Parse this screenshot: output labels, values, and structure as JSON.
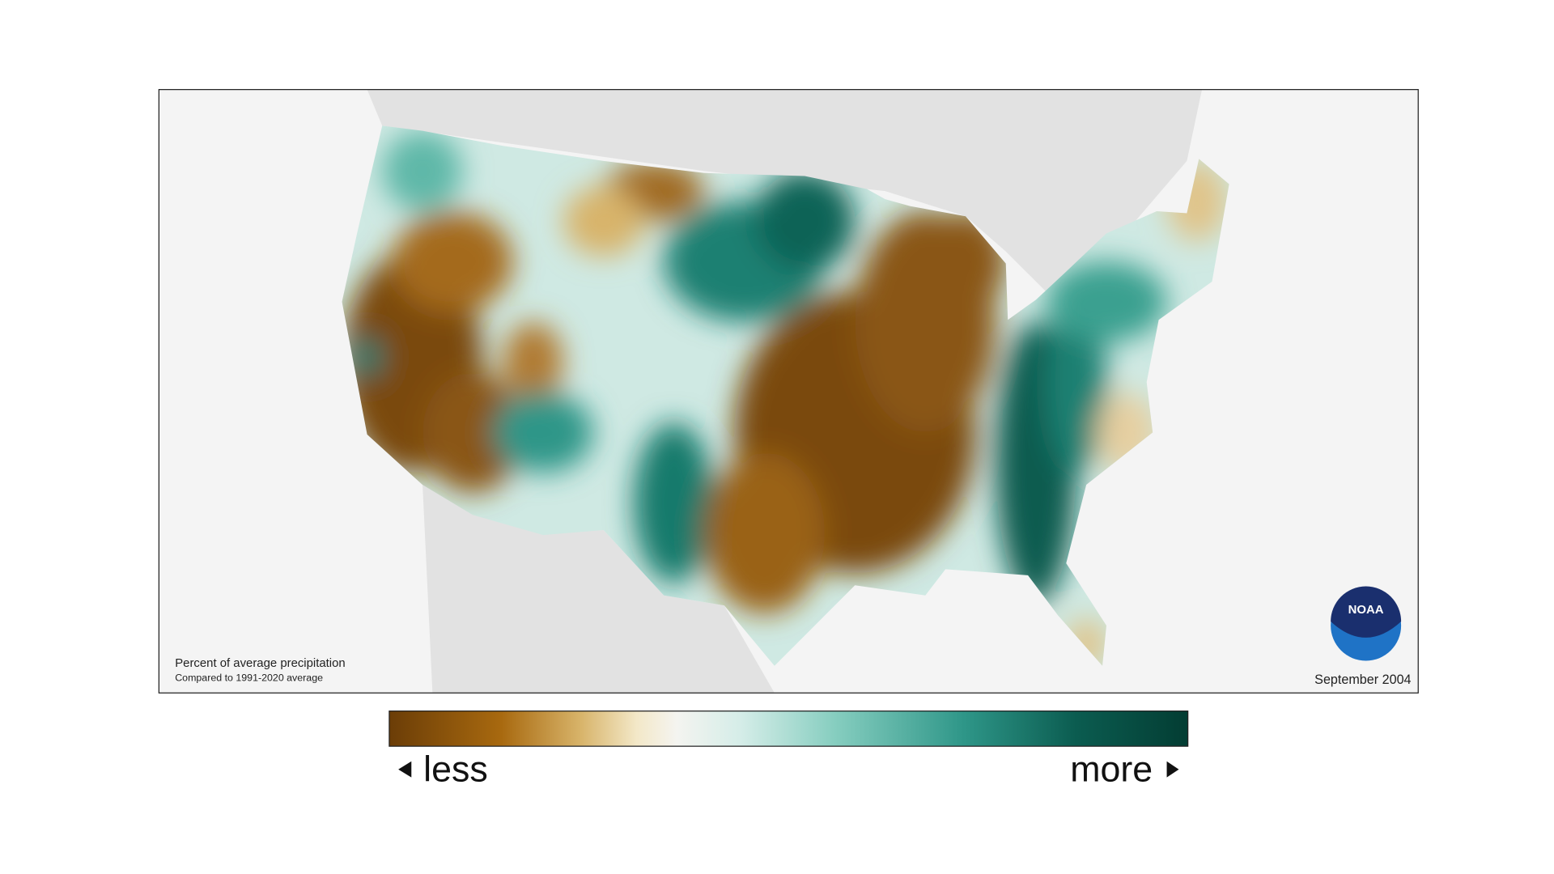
{
  "map": {
    "note": {
      "title": "Percent of average precipitation",
      "subtitle": "Compared to 1991-2020 average"
    },
    "date": "September 2004",
    "logo": "NOAA"
  },
  "legend": {
    "less": "less",
    "more": "more"
  }
}
